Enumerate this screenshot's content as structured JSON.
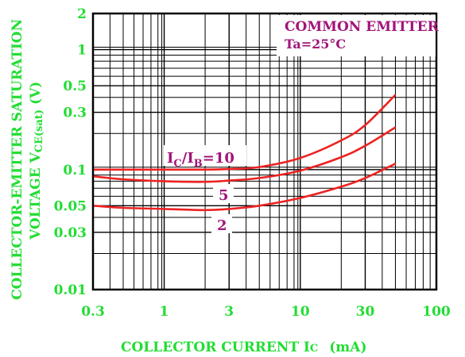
{
  "chart_data": {
    "type": "line",
    "x_scale": "log",
    "y_scale": "log",
    "xlim": [
      0.3,
      100
    ],
    "ylim": [
      0.01,
      2
    ],
    "grid": true,
    "xlabel": "COLLECTOR CURRENT Ic (mA)",
    "xlabel_main": "COLLECTOR CURRENT I",
    "xlabel_sub": "C",
    "xlabel_unit": "(mA)",
    "ylabel_line1": "COLLECTOR-EMITTER SATURATION",
    "ylabel_line2_main": "VOLTAGE V",
    "ylabel_line2_sub": "CE(sat)",
    "ylabel_line2_unit": "(V)",
    "x_ticks": [
      {
        "value": 0.3,
        "label": "0.3"
      },
      {
        "value": 1,
        "label": "1"
      },
      {
        "value": 3,
        "label": "3"
      },
      {
        "value": 10,
        "label": "10"
      },
      {
        "value": 30,
        "label": "30"
      },
      {
        "value": 100,
        "label": "100"
      }
    ],
    "y_ticks": [
      {
        "value": 0.01,
        "label": "0.01"
      },
      {
        "value": 0.03,
        "label": "0.03"
      },
      {
        "value": 0.05,
        "label": "0.05"
      },
      {
        "value": 0.1,
        "label": "0.1"
      },
      {
        "value": 0.3,
        "label": "0.3"
      },
      {
        "value": 0.5,
        "label": "0.5"
      },
      {
        "value": 1,
        "label": "1"
      },
      {
        "value": 2,
        "label": "2"
      }
    ],
    "series": [
      {
        "name": "10",
        "color": "#ee2222",
        "x": [
          0.3,
          0.5,
          1,
          2,
          3,
          5,
          10,
          20,
          30,
          50
        ],
        "y": [
          0.1,
          0.1,
          0.1,
          0.1,
          0.101,
          0.105,
          0.125,
          0.175,
          0.235,
          0.42
        ]
      },
      {
        "name": "5",
        "color": "#ee2222",
        "x": [
          0.3,
          0.5,
          1,
          2,
          3,
          5,
          10,
          20,
          30,
          50
        ],
        "y": [
          0.088,
          0.083,
          0.08,
          0.079,
          0.081,
          0.085,
          0.098,
          0.127,
          0.158,
          0.225
        ]
      },
      {
        "name": "2",
        "color": "#ee2222",
        "x": [
          0.3,
          0.5,
          1,
          2,
          3,
          5,
          10,
          20,
          30,
          50
        ],
        "y": [
          0.05,
          0.048,
          0.047,
          0.046,
          0.047,
          0.05,
          0.058,
          0.072,
          0.085,
          0.112
        ]
      }
    ],
    "annotations": {
      "condition_line1": "COMMON EMITTER",
      "condition_line2": "Ta=25°C",
      "ratio_main_I": "I",
      "ratio_sub_C": "C",
      "ratio_slash_I": "/I",
      "ratio_sub_B": "B",
      "ratio_value": "=10",
      "label_5": "5",
      "label_2": "2"
    },
    "colors": {
      "axis_text": "#22dd33",
      "curve": "#ee2222",
      "annotation": "#a0157a",
      "grid": "#000000"
    }
  }
}
